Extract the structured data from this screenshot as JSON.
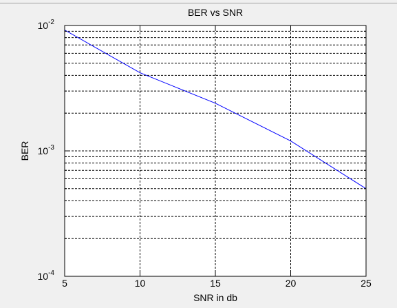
{
  "chart_data": {
    "type": "line",
    "title": "BER vs SNR",
    "xlabel": "SNR in db",
    "ylabel": "BER",
    "xlim": [
      5,
      25
    ],
    "ylim": [
      0.0001,
      0.01
    ],
    "yscale": "log",
    "grid": true,
    "x_ticks": [
      {
        "value": 5,
        "label": "5"
      },
      {
        "value": 10,
        "label": "10"
      },
      {
        "value": 15,
        "label": "15"
      },
      {
        "value": 20,
        "label": "20"
      },
      {
        "value": 25,
        "label": "25"
      }
    ],
    "y_ticks": [
      {
        "value": 0.0001,
        "base": "10",
        "exp": "-4"
      },
      {
        "value": 0.001,
        "base": "10",
        "exp": "-3"
      },
      {
        "value": 0.01,
        "base": "10",
        "exp": "-2"
      }
    ],
    "series": [
      {
        "color": "#0000ff",
        "x": [
          5,
          10,
          15,
          20,
          25
        ],
        "y": [
          0.0092,
          0.0042,
          0.0024,
          0.0012,
          0.0005
        ]
      }
    ]
  },
  "colors": {
    "figure_background": "#f0f0f0",
    "plot_background": "#ffffff",
    "grid": "#000000",
    "line": "#0000ff"
  }
}
